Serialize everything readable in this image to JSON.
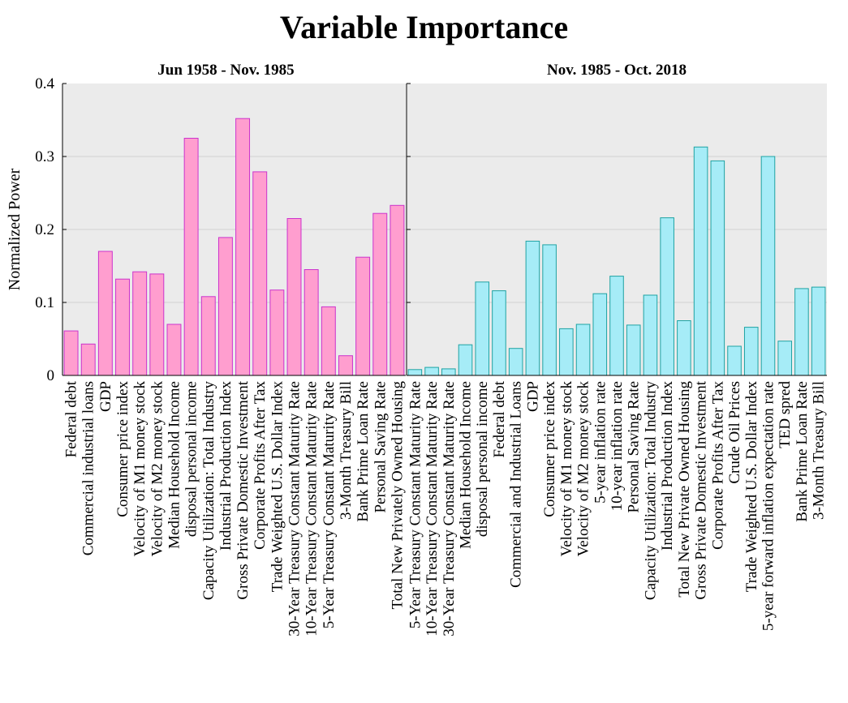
{
  "title": "Variable Importance",
  "ylabel": "Normalized Power",
  "colors": {
    "panel_bg": "#ebebeb",
    "left_fill": "#ff9ecf",
    "left_stroke": "#cc33cc",
    "right_fill": "#a6ecf7",
    "right_stroke": "#1fa3a3",
    "grid": "#d0d0d0"
  },
  "chart_data": [
    {
      "type": "bar",
      "title": "Jun 1958 - Nov. 1985",
      "ylabel": "Normalized Power",
      "ylim": [
        0,
        0.4
      ],
      "yticks": [
        "0",
        "0.1",
        "0.2",
        "0.3",
        "0.4"
      ],
      "grid": true,
      "categories": [
        "Federal debt",
        "Commercial industrial loans",
        "GDP",
        "Consumer price index",
        "Velocity of M1 money stock",
        "Velocity of M2 money stock",
        "Median Household Income",
        "disposal personal income",
        "Capacity Utilization: Total Industry",
        "Industrial Production Index",
        "Gross Private Domestic Investment",
        "Corporate Profits After Tax",
        "Trade Weighted U.S. Dollar Index",
        "30-Year Treasury Constant Maturity Rate",
        "10-Year Treasury Constant Maturity Rate",
        "5-Year Treasury Constant Maturity Rate",
        "3-Month Treasury Bill",
        "Bank Prime Loan Rate",
        "Personal Saving Rate",
        "Total New Privately Owned Housing"
      ],
      "values": [
        0.061,
        0.043,
        0.17,
        0.132,
        0.142,
        0.139,
        0.07,
        0.325,
        0.108,
        0.189,
        0.352,
        0.279,
        0.117,
        0.215,
        0.145,
        0.094,
        0.027,
        0.162,
        0.222,
        0.233
      ]
    },
    {
      "type": "bar",
      "title": "Nov. 1985 - Oct. 2018",
      "ylim": [
        0,
        0.4
      ],
      "grid": true,
      "categories": [
        "5-Year Treasury Constant Maturity Rate",
        "10-Year Treasury Constant Maturity Rate",
        "30-Year Treasury Constant Maturity Rate",
        "Median Household Income",
        "disposal personal income",
        "Federal debt",
        "Commercial and Industrial Loans",
        "GDP",
        "Consumer price index",
        "Velocity of M1 money stock",
        "Velocity of M2 money stock",
        "5-year inflation rate",
        "10-year inflation rate",
        "Personal Saving Rate",
        "Capacity Utilization: Total Industry",
        "Industrial Production Index",
        "Total New Private Owned Housing",
        "Gross Private Domestic Investment",
        "Corporate Profits After Tax",
        "Crude Oil Prices",
        "Trade Weighted U.S. Dollar Index",
        "5-year forward inflation expectation rate",
        "TED spred",
        "Bank Prime Loan Rate",
        "3-Month Treasury Bill"
      ],
      "values": [
        0.008,
        0.011,
        0.009,
        0.042,
        0.128,
        0.116,
        0.037,
        0.184,
        0.179,
        0.064,
        0.07,
        0.112,
        0.136,
        0.069,
        0.11,
        0.216,
        0.075,
        0.313,
        0.294,
        0.04,
        0.066,
        0.3,
        0.047,
        0.119,
        0.121
      ]
    }
  ]
}
